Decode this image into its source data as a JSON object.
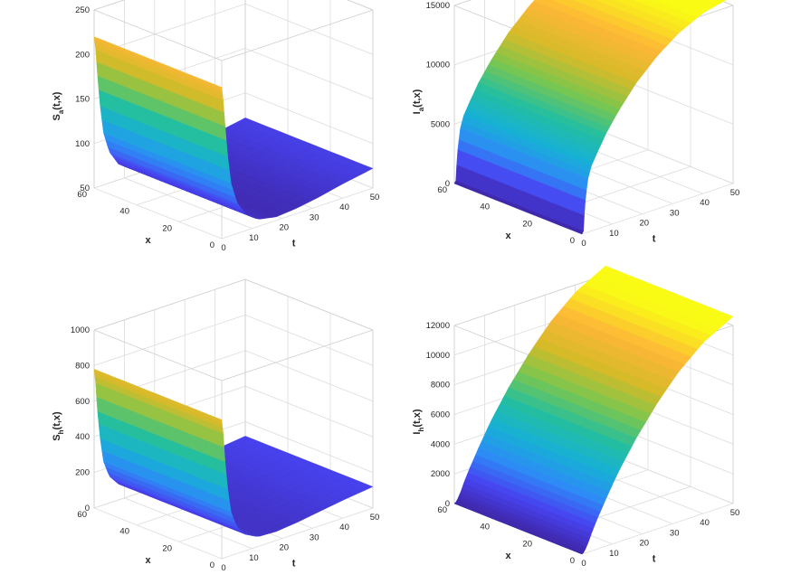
{
  "figure": {
    "layout": "2x2 grid of 3-D surface plots",
    "colormap": "parula",
    "colormap_stops": [
      "#3e26a8",
      "#4743f1",
      "#2d8bf6",
      "#17b0d5",
      "#24bf9f",
      "#7cc64d",
      "#d7ba28",
      "#fdb737",
      "#f9fb14"
    ],
    "grid": true,
    "box": true
  },
  "chart_data": [
    {
      "type": "surface3d",
      "zlabel_main": "S",
      "zlabel_sub": "a",
      "zlabel_tail": "(t,x)",
      "xlabel": "t",
      "ylabel": "x",
      "xlim": [
        0,
        50
      ],
      "ylim": [
        0,
        60
      ],
      "zlim": [
        50,
        250
      ],
      "xticks": [
        "0",
        "10",
        "20",
        "30",
        "40",
        "50"
      ],
      "yticks": [
        "0",
        "20",
        "40",
        "60"
      ],
      "zticks": [
        "50",
        "100",
        "150",
        "200",
        "250"
      ],
      "t_samples": [
        0,
        0.5,
        1,
        2,
        3,
        5,
        8,
        12,
        18,
        25,
        32,
        40,
        50
      ],
      "x_samples": [
        0,
        5,
        10,
        15,
        20,
        25,
        30,
        35,
        40,
        45,
        50,
        55,
        60
      ],
      "profile_over_t": [
        220,
        205,
        180,
        140,
        110,
        85,
        68,
        58,
        54,
        56,
        60,
        66,
        72
      ],
      "profile_over_x": [
        1,
        1,
        1,
        1,
        1,
        1,
        1,
        1,
        1,
        1,
        1,
        1,
        1
      ]
    },
    {
      "type": "surface3d",
      "zlabel_main": "I",
      "zlabel_sub": "a",
      "zlabel_tail": "(t,x)",
      "xlabel": "t",
      "ylabel": "x",
      "xlim": [
        0,
        50
      ],
      "ylim": [
        0,
        60
      ],
      "zlim": [
        0,
        15000
      ],
      "xticks": [
        "0",
        "10",
        "20",
        "30",
        "40",
        "50"
      ],
      "yticks": [
        "0",
        "20",
        "40",
        "60"
      ],
      "zticks": [
        "0",
        "5000",
        "10000",
        "15000"
      ],
      "t_samples": [
        0,
        0.5,
        1,
        2,
        3,
        5,
        8,
        12,
        18,
        25,
        32,
        40,
        50
      ],
      "x_samples": [
        0,
        5,
        10,
        15,
        20,
        25,
        30,
        35,
        40,
        45,
        50,
        55,
        60
      ],
      "profile_over_t": [
        0,
        200,
        2500,
        4500,
        5400,
        6400,
        7800,
        9300,
        11200,
        12900,
        14200,
        15200,
        15800
      ],
      "profile_over_x": [
        1,
        1,
        1,
        1,
        1,
        1,
        1,
        1,
        1,
        1,
        1,
        1,
        1
      ]
    },
    {
      "type": "surface3d",
      "zlabel_main": "S",
      "zlabel_sub": "h",
      "zlabel_tail": "(t,x)",
      "xlabel": "t",
      "ylabel": "x",
      "xlim": [
        0,
        50
      ],
      "ylim": [
        0,
        60
      ],
      "zlim": [
        0,
        1000
      ],
      "xticks": [
        "0",
        "10",
        "20",
        "30",
        "40",
        "50"
      ],
      "yticks": [
        "0",
        "20",
        "40",
        "60"
      ],
      "zticks": [
        "0",
        "200",
        "400",
        "600",
        "800",
        "1000"
      ],
      "t_samples": [
        0,
        0.5,
        1,
        2,
        3,
        5,
        8,
        12,
        18,
        25,
        32,
        40,
        50
      ],
      "x_samples": [
        0,
        5,
        10,
        15,
        20,
        25,
        30,
        35,
        40,
        45,
        50,
        55,
        60
      ],
      "profile_over_t": [
        780,
        700,
        560,
        380,
        250,
        150,
        90,
        55,
        50,
        62,
        80,
        100,
        120
      ],
      "profile_over_x": [
        1,
        1,
        1,
        1,
        1,
        1,
        1,
        1,
        1,
        1,
        1,
        1,
        1
      ]
    },
    {
      "type": "surface3d",
      "zlabel_main": "I",
      "zlabel_sub": "h",
      "zlabel_tail": "(t,x)",
      "xlabel": "t",
      "ylabel": "x",
      "xlim": [
        0,
        50
      ],
      "ylim": [
        0,
        60
      ],
      "zlim": [
        0,
        12000
      ],
      "xticks": [
        "0",
        "10",
        "20",
        "30",
        "40",
        "50"
      ],
      "yticks": [
        "0",
        "20",
        "40",
        "60"
      ],
      "zticks": [
        "0",
        "2000",
        "4000",
        "6000",
        "8000",
        "10000",
        "12000"
      ],
      "t_samples": [
        0,
        0.5,
        1,
        2,
        3,
        5,
        8,
        12,
        18,
        25,
        32,
        40,
        50
      ],
      "x_samples": [
        0,
        5,
        10,
        15,
        20,
        25,
        30,
        35,
        40,
        45,
        50,
        55,
        60
      ],
      "profile_over_t": [
        0,
        60,
        200,
        600,
        1100,
        2000,
        3200,
        4700,
        6600,
        8500,
        10100,
        11500,
        12600
      ],
      "profile_over_x": [
        1,
        1,
        1,
        1,
        1,
        1,
        1,
        1,
        1,
        1,
        1,
        1,
        1
      ]
    }
  ]
}
